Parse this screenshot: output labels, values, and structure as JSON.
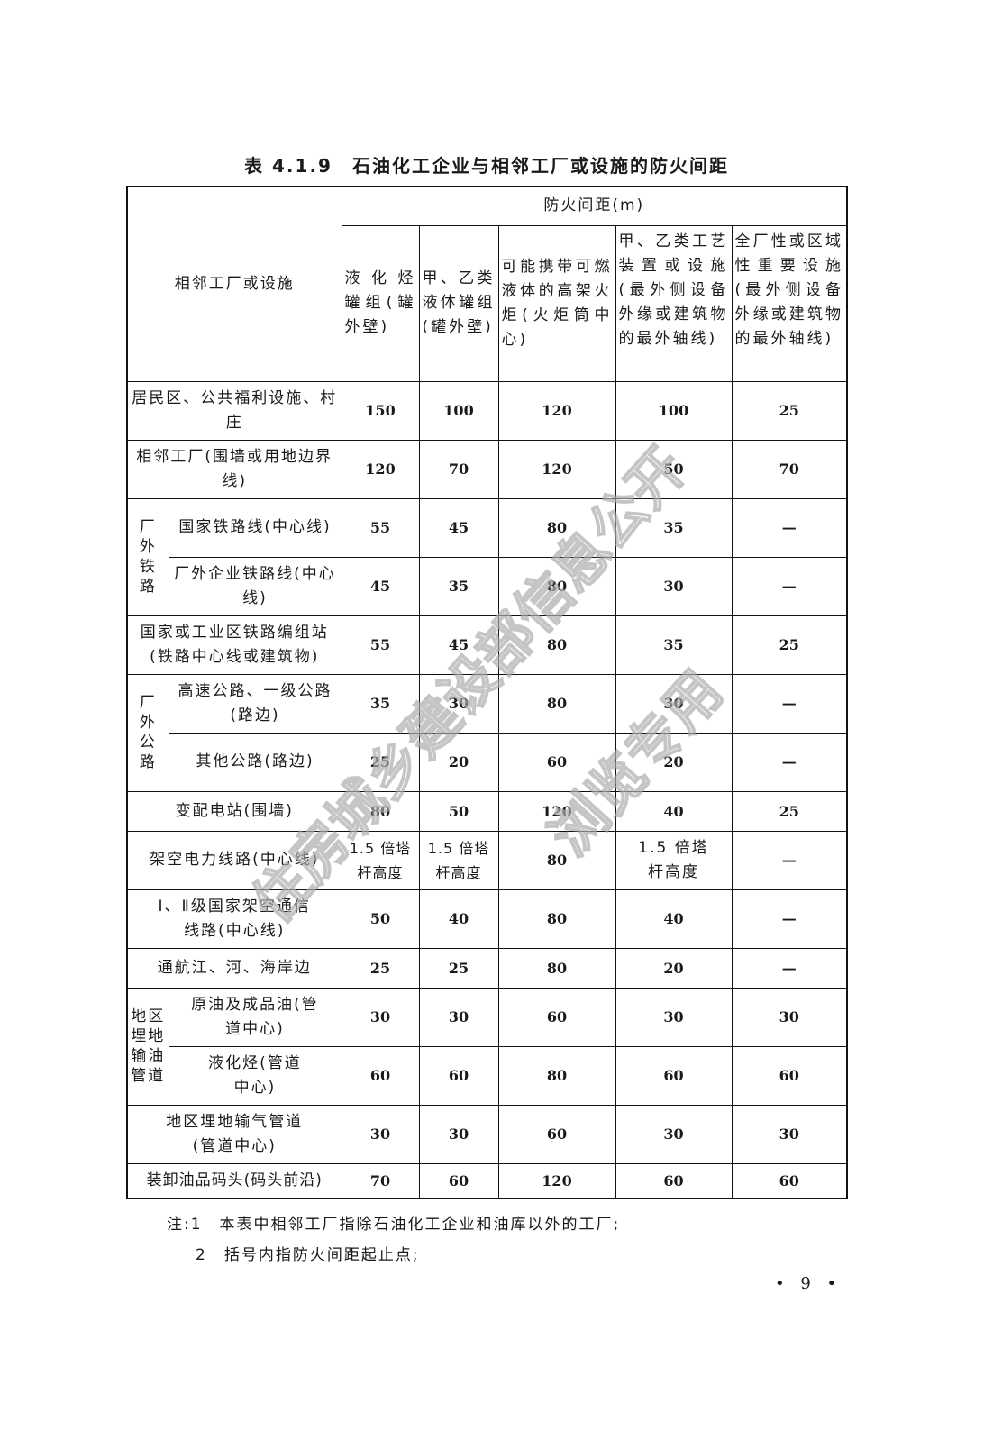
{
  "title": "表 4.1.9　石油化工企业与相邻工厂或设施的防火间距",
  "header": {
    "row_header": "相邻工厂或设施",
    "group_header": "防火间距(m)",
    "columns": [
      "液化烃罐组(罐外壁)",
      "甲、乙类液体罐组(罐外壁)",
      "可能携带可燃液体的高架火炬(火炬筒中心)",
      "甲、乙类工艺装置或设施(最外侧设备外缘或建筑物的最外轴线)",
      "全厂性或区域性重要设施(最外侧设备外缘或建筑物的最外轴线)"
    ]
  },
  "groups": {
    "railway": "厂外铁路",
    "highway": "厂外公路",
    "pipeline": "地区埋地输油管道"
  },
  "rows": [
    {
      "label": "居民区、公共福利设施、村庄",
      "values": [
        "150",
        "100",
        "120",
        "100",
        "25"
      ]
    },
    {
      "label": "相邻工厂(围墙或用地边界线)",
      "values": [
        "120",
        "70",
        "120",
        "50",
        "70"
      ]
    },
    {
      "label": "国家铁路线(中心线)",
      "values": [
        "55",
        "45",
        "80",
        "35",
        "—"
      ]
    },
    {
      "label": "厂外企业铁路线(中心线)",
      "values": [
        "45",
        "35",
        "80",
        "30",
        "—"
      ]
    },
    {
      "label": "国家或工业区铁路编组站(铁路中心线或建筑物)",
      "values": [
        "55",
        "45",
        "80",
        "35",
        "25"
      ]
    },
    {
      "label": "高速公路、一级公路(路边)",
      "values": [
        "35",
        "30",
        "80",
        "30",
        "—"
      ]
    },
    {
      "label": "其他公路(路边)",
      "values": [
        "25",
        "20",
        "60",
        "20",
        "—"
      ]
    },
    {
      "label": "变配电站(围墙)",
      "values": [
        "80",
        "50",
        "120",
        "40",
        "25"
      ]
    },
    {
      "label": "架空电力线路(中心线)",
      "values": [
        "1.5 倍塔杆高度",
        "1.5 倍塔杆高度",
        "80",
        "1.5 倍塔杆高度",
        "—"
      ]
    },
    {
      "label": "Ⅰ、Ⅱ级国家架空通信线路(中心线)",
      "values": [
        "50",
        "40",
        "80",
        "40",
        "—"
      ]
    },
    {
      "label": "通航江、河、海岸边",
      "values": [
        "25",
        "25",
        "80",
        "20",
        "—"
      ]
    },
    {
      "label": "原油及成品油(管道中心)",
      "values": [
        "30",
        "30",
        "60",
        "30",
        "30"
      ]
    },
    {
      "label": "液化烃(管道中心)",
      "values": [
        "60",
        "60",
        "80",
        "60",
        "60"
      ]
    },
    {
      "label": "地区埋地输气管道(管道中心)",
      "values": [
        "30",
        "30",
        "60",
        "30",
        "30"
      ]
    },
    {
      "label": "装卸油品码头(码头前沿)",
      "values": [
        "70",
        "60",
        "120",
        "60",
        "60"
      ]
    }
  ],
  "notes": [
    "注:1　本表中相邻工厂指除石油化工企业和油库以外的工厂;",
    "2　括号内指防火间距起止点;"
  ],
  "page_number": "• 9 •",
  "watermark": [
    "住房城乡建设部信息公开",
    "浏览专用"
  ]
}
